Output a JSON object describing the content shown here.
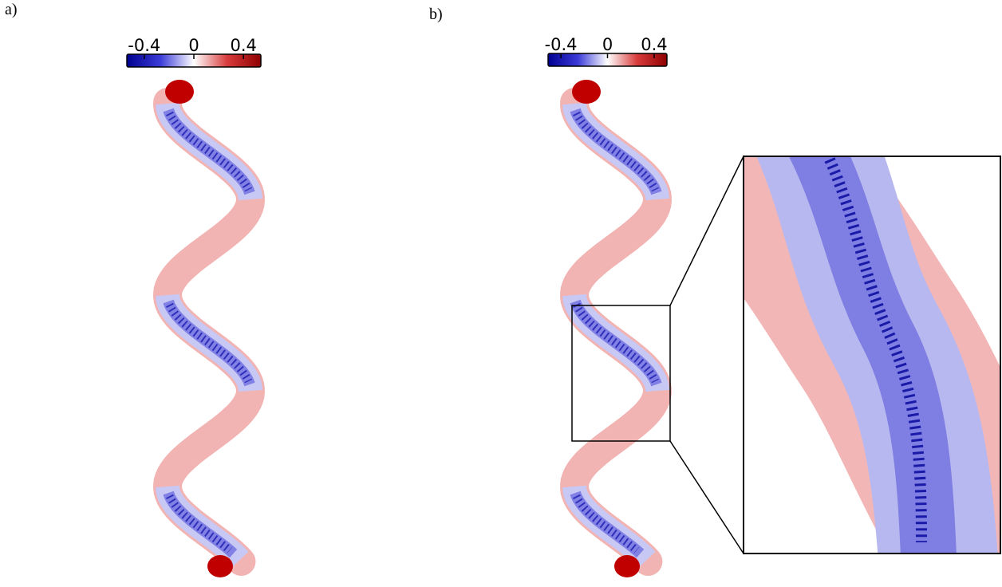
{
  "panels": [
    {
      "label": "a)",
      "colorbar": {
        "lim": [
          -0.54,
          0.54
        ],
        "ticks": [
          -0.4,
          0,
          0.4
        ]
      }
    },
    {
      "label": "b)",
      "colorbar": {
        "lim": [
          -0.51,
          0.51
        ],
        "ticks": [
          -0.4,
          0,
          0.4
        ]
      }
    }
  ]
}
